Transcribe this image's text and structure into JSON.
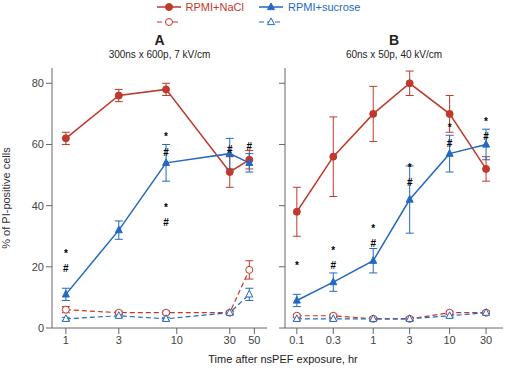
{
  "chart_data": [
    {
      "type": "line",
      "title": "A",
      "subtitle": "300ns x 600p, 7 kV/cm",
      "xlabel": "Time after nsPEF exposure, hr",
      "ylabel": "% of PI-positive cells",
      "log": "x",
      "grid": false,
      "legend": "top",
      "x": [
        1,
        3,
        8,
        30,
        45
      ],
      "xlim": [
        0.75,
        65
      ],
      "xticks": [
        1,
        3,
        10,
        30,
        50
      ],
      "ylim": [
        0,
        85
      ],
      "yticks": [
        0,
        20,
        40,
        60,
        80
      ],
      "series": [
        {
          "name": "RPMI+NaCl",
          "color": "#c0392b",
          "line_style": "solid",
          "marker": "circle",
          "values": [
            62,
            76,
            78,
            51,
            55
          ],
          "errors": [
            2,
            2,
            2,
            5,
            3
          ]
        },
        {
          "name": "RPMI+sucrose",
          "color": "#2469c0",
          "line_style": "solid",
          "marker": "triangle",
          "values": [
            11,
            32,
            54,
            57,
            54
          ],
          "errors": [
            2,
            3,
            6,
            5,
            3
          ]
        },
        {
          "color": "#c0392b",
          "line_style": "dashed",
          "marker": "open_circle",
          "values": [
            6,
            5,
            5,
            5,
            19
          ],
          "errors": [
            1,
            0.5,
            0.5,
            0.5,
            3
          ]
        },
        {
          "color": "#2469c0",
          "line_style": "dashed",
          "marker": "open_triangle",
          "values": [
            3,
            4,
            3,
            5,
            11
          ],
          "errors": [
            0.5,
            0.5,
            0.5,
            0.5,
            2
          ]
        }
      ],
      "annotations": [
        {
          "x": 1,
          "y": 23,
          "text": "*"
        },
        {
          "x": 1,
          "y": 18,
          "text": "#"
        },
        {
          "x": 8,
          "y": 38,
          "text": "*"
        },
        {
          "x": 8,
          "y": 33,
          "text": "#"
        },
        {
          "x": 8,
          "y": 61,
          "text": "*"
        },
        {
          "x": 8,
          "y": 56,
          "text": "#"
        },
        {
          "x": 30,
          "y": 57,
          "text": "#"
        },
        {
          "x": 45,
          "y": 58,
          "text": "#"
        }
      ]
    },
    {
      "type": "line",
      "title": "B",
      "subtitle": "60ns x 50p, 40 kV/cm",
      "log": "x",
      "grid": false,
      "tick_labels": "x",
      "x": [
        0.1,
        0.3,
        1,
        3,
        10,
        30
      ],
      "xlim": [
        0.07,
        50
      ],
      "xticks": [
        0.1,
        0.3,
        1,
        3,
        10,
        30
      ],
      "ylim": [
        0,
        85
      ],
      "yticks": [
        0,
        20,
        40,
        60,
        80
      ],
      "series": [
        {
          "name": "RPMI+NaCl",
          "color": "#c0392b",
          "line_style": "solid",
          "marker": "circle",
          "values": [
            38,
            56,
            70,
            80,
            70,
            52
          ],
          "errors": [
            8,
            13,
            9,
            4,
            6,
            4
          ]
        },
        {
          "name": "RPMI+sucrose",
          "color": "#2469c0",
          "line_style": "solid",
          "marker": "triangle",
          "values": [
            9,
            15,
            22,
            42,
            57,
            60
          ],
          "errors": [
            2,
            3,
            4,
            11,
            6,
            5
          ]
        },
        {
          "color": "#c0392b",
          "line_style": "dashed",
          "marker": "open_circle",
          "values": [
            4,
            4,
            3,
            3,
            5,
            5
          ],
          "errors": [
            0.5,
            0.5,
            0.5,
            0.5,
            0.5,
            0.5
          ]
        },
        {
          "color": "#2469c0",
          "line_style": "dashed",
          "marker": "open_triangle",
          "values": [
            3,
            3,
            3,
            3,
            4,
            5
          ],
          "errors": [
            0.5,
            0.5,
            0.5,
            0.5,
            0.5,
            0.5
          ]
        }
      ],
      "annotations": [
        {
          "x": 0.1,
          "y": 19,
          "text": "*"
        },
        {
          "x": 0.3,
          "y": 24,
          "text": "*"
        },
        {
          "x": 0.3,
          "y": 19,
          "text": "#"
        },
        {
          "x": 1,
          "y": 31,
          "text": "*"
        },
        {
          "x": 1,
          "y": 26,
          "text": "#"
        },
        {
          "x": 3,
          "y": 51,
          "text": "*"
        },
        {
          "x": 3,
          "y": 46,
          "text": "#"
        },
        {
          "x": 10,
          "y": 64,
          "text": "*"
        },
        {
          "x": 10,
          "y": 59,
          "text": "#"
        },
        {
          "x": 30,
          "y": 66,
          "text": "*"
        },
        {
          "x": 30,
          "y": 61,
          "text": "#"
        }
      ]
    }
  ]
}
